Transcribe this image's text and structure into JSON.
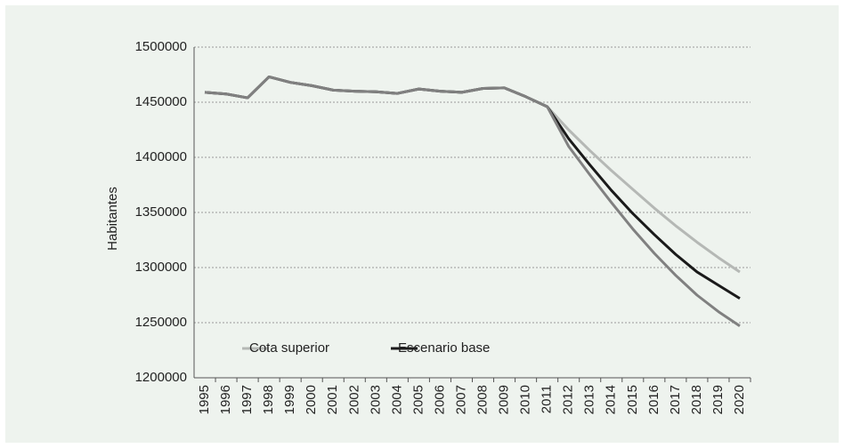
{
  "chart_data": {
    "type": "line",
    "y_label": "Habitantes",
    "categories": [
      "1995",
      "1996",
      "1997",
      "1998",
      "1999",
      "2000",
      "2001",
      "2002",
      "2003",
      "2004",
      "2005",
      "2006",
      "2007",
      "2008",
      "2009",
      "2010",
      "2011",
      "2012",
      "2013",
      "2014",
      "2015",
      "2016",
      "2017",
      "2018",
      "2019",
      "2020"
    ],
    "series": [
      {
        "name": "Cota superior",
        "color": "#b5b8b5",
        "values": [
          1459000,
          1457500,
          1454000,
          1473000,
          1468000,
          1465000,
          1461000,
          1460000,
          1459500,
          1458000,
          1462000,
          1460000,
          1459000,
          1462500,
          1463000,
          1455000,
          1446000,
          1425000,
          1406000,
          1388000,
          1371000,
          1354000,
          1338000,
          1323000,
          1309000,
          1296000
        ]
      },
      {
        "name": "Escenario base",
        "color": "#1a1a1a",
        "values": [
          1459000,
          1457500,
          1454000,
          1473000,
          1468000,
          1465000,
          1461000,
          1460000,
          1459500,
          1458000,
          1462000,
          1460000,
          1459000,
          1462500,
          1463000,
          1455000,
          1446000,
          1417000,
          1393000,
          1370000,
          1349000,
          1330000,
          1312000,
          1296000,
          1284000,
          1272000
        ]
      },
      {
        "color": "#808080",
        "values": [
          1459000,
          1457500,
          1454000,
          1473000,
          1468000,
          1465000,
          1461000,
          1460000,
          1459500,
          1458000,
          1462000,
          1460000,
          1459000,
          1462500,
          1463000,
          1455000,
          1446000,
          1410000,
          1384000,
          1359000,
          1335000,
          1313000,
          1293000,
          1275000,
          1260000,
          1247000
        ]
      }
    ],
    "ylim": [
      1200000,
      1500000
    ],
    "yticks": [
      1200000,
      1250000,
      1300000,
      1350000,
      1400000,
      1450000,
      1500000
    ],
    "grid": true,
    "legend": "lower-left"
  }
}
